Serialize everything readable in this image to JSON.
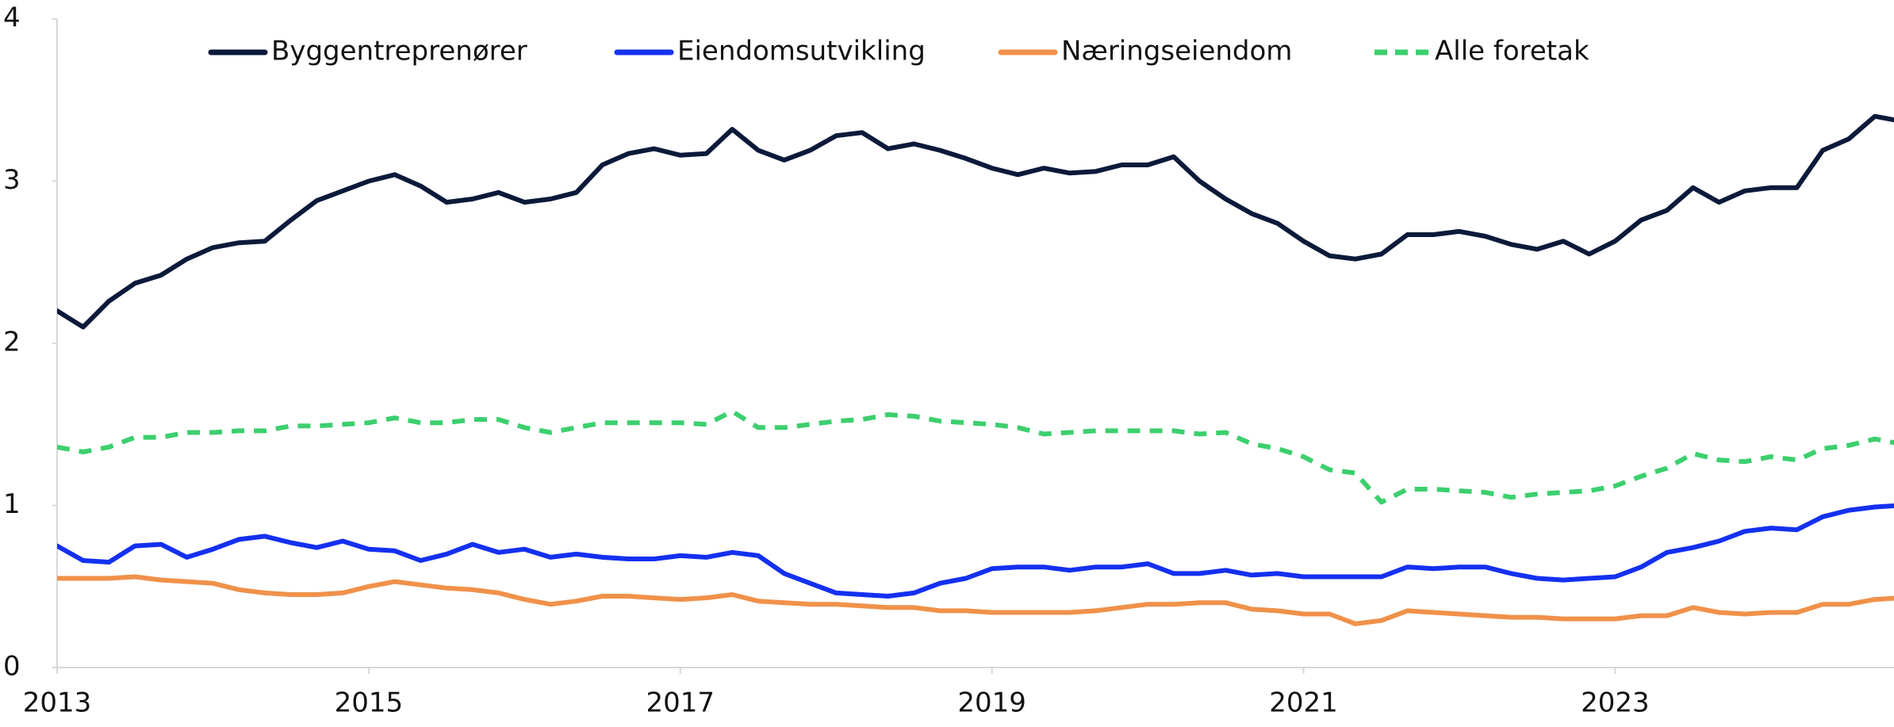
{
  "chart_data": {
    "type": "line",
    "x": [
      2013,
      2013.167,
      2013.333,
      2013.5,
      2013.667,
      2013.833,
      2014,
      2014.167,
      2014.333,
      2014.5,
      2014.667,
      2014.833,
      2015,
      2015.167,
      2015.333,
      2015.5,
      2015.667,
      2015.833,
      2016,
      2016.167,
      2016.333,
      2016.5,
      2016.667,
      2016.833,
      2017,
      2017.167,
      2017.333,
      2017.5,
      2017.667,
      2017.833,
      2018,
      2018.167,
      2018.333,
      2018.5,
      2018.667,
      2018.833,
      2019,
      2019.167,
      2019.333,
      2019.5,
      2019.667,
      2019.833,
      2020,
      2020.167,
      2020.333,
      2020.5,
      2020.667,
      2020.833,
      2021,
      2021.167,
      2021.333,
      2021.5,
      2021.667,
      2021.833,
      2022,
      2022.167,
      2022.333,
      2022.5,
      2022.667,
      2022.833,
      2023,
      2023.167,
      2023.333,
      2023.5,
      2023.667,
      2023.833,
      2024,
      2024.167,
      2024.333,
      2024.5,
      2024.667,
      2024.833
    ],
    "series": [
      {
        "name": "Byggentreprenører",
        "color": "#0b1a3a",
        "values": [
          2.2,
          2.1,
          2.26,
          2.37,
          2.42,
          2.52,
          2.59,
          2.62,
          2.63,
          2.76,
          2.88,
          2.94,
          3.0,
          3.04,
          2.97,
          2.87,
          2.89,
          2.93,
          2.87,
          2.89,
          2.93,
          3.1,
          3.17,
          3.2,
          3.16,
          3.17,
          3.32,
          3.19,
          3.13,
          3.19,
          3.28,
          3.3,
          3.2,
          3.23,
          3.19,
          3.14,
          3.08,
          3.04,
          3.08,
          3.05,
          3.06,
          3.1,
          3.1,
          3.15,
          3.0,
          2.89,
          2.8,
          2.74,
          2.63,
          2.54,
          2.52,
          2.55,
          2.67,
          2.67,
          2.69,
          2.66,
          2.61,
          2.58,
          2.63,
          2.55,
          2.63,
          2.76,
          2.82,
          2.96,
          2.87,
          2.94,
          2.96,
          2.96,
          3.19,
          3.26,
          3.4,
          3.37
        ]
      },
      {
        "name": "Eiendomsutvikling",
        "color": "#1430f0",
        "values": [
          0.75,
          0.66,
          0.65,
          0.75,
          0.76,
          0.68,
          0.73,
          0.79,
          0.81,
          0.77,
          0.74,
          0.78,
          0.73,
          0.72,
          0.66,
          0.7,
          0.76,
          0.71,
          0.73,
          0.68,
          0.7,
          0.68,
          0.67,
          0.67,
          0.69,
          0.68,
          0.71,
          0.69,
          0.58,
          0.52,
          0.46,
          0.45,
          0.44,
          0.46,
          0.52,
          0.55,
          0.61,
          0.62,
          0.62,
          0.6,
          0.62,
          0.62,
          0.64,
          0.58,
          0.58,
          0.6,
          0.57,
          0.58,
          0.56,
          0.56,
          0.56,
          0.56,
          0.62,
          0.61,
          0.62,
          0.62,
          0.58,
          0.55,
          0.54,
          0.55,
          0.56,
          0.62,
          0.71,
          0.74,
          0.78,
          0.84,
          0.86,
          0.85,
          0.93,
          0.97,
          0.99,
          1.0
        ]
      },
      {
        "name": "Næringseiendom",
        "color": "#f0914a",
        "values": [
          0.55,
          0.55,
          0.55,
          0.56,
          0.54,
          0.53,
          0.52,
          0.48,
          0.46,
          0.45,
          0.45,
          0.46,
          0.5,
          0.53,
          0.51,
          0.49,
          0.48,
          0.46,
          0.42,
          0.39,
          0.41,
          0.44,
          0.44,
          0.43,
          0.42,
          0.43,
          0.45,
          0.41,
          0.4,
          0.39,
          0.39,
          0.38,
          0.37,
          0.37,
          0.35,
          0.35,
          0.34,
          0.34,
          0.34,
          0.34,
          0.35,
          0.37,
          0.39,
          0.39,
          0.4,
          0.4,
          0.36,
          0.35,
          0.33,
          0.33,
          0.27,
          0.29,
          0.35,
          0.34,
          0.33,
          0.32,
          0.31,
          0.31,
          0.3,
          0.3,
          0.3,
          0.32,
          0.32,
          0.37,
          0.34,
          0.33,
          0.34,
          0.34,
          0.39,
          0.39,
          0.42,
          0.43
        ]
      },
      {
        "name": "Alle foretak",
        "color": "#3ccf6e",
        "dashed": true,
        "values": [
          1.36,
          1.33,
          1.36,
          1.42,
          1.42,
          1.45,
          1.45,
          1.46,
          1.46,
          1.49,
          1.49,
          1.5,
          1.51,
          1.54,
          1.51,
          1.51,
          1.53,
          1.53,
          1.48,
          1.45,
          1.48,
          1.51,
          1.51,
          1.51,
          1.51,
          1.5,
          1.58,
          1.48,
          1.48,
          1.5,
          1.52,
          1.53,
          1.56,
          1.55,
          1.52,
          1.51,
          1.5,
          1.48,
          1.44,
          1.45,
          1.46,
          1.46,
          1.46,
          1.46,
          1.44,
          1.45,
          1.38,
          1.35,
          1.3,
          1.22,
          1.2,
          1.02,
          1.1,
          1.1,
          1.09,
          1.08,
          1.05,
          1.07,
          1.08,
          1.09,
          1.12,
          1.18,
          1.23,
          1.32,
          1.28,
          1.27,
          1.3,
          1.28,
          1.35,
          1.37,
          1.41,
          1.38
        ]
      }
    ],
    "xlim": [
      2013,
      2024.79
    ],
    "xticks": [
      2013,
      2015,
      2017,
      2019,
      2021,
      2023
    ],
    "ylim": [
      0,
      4
    ],
    "yticks": [
      0,
      1,
      2,
      3,
      4
    ],
    "grid": false
  }
}
